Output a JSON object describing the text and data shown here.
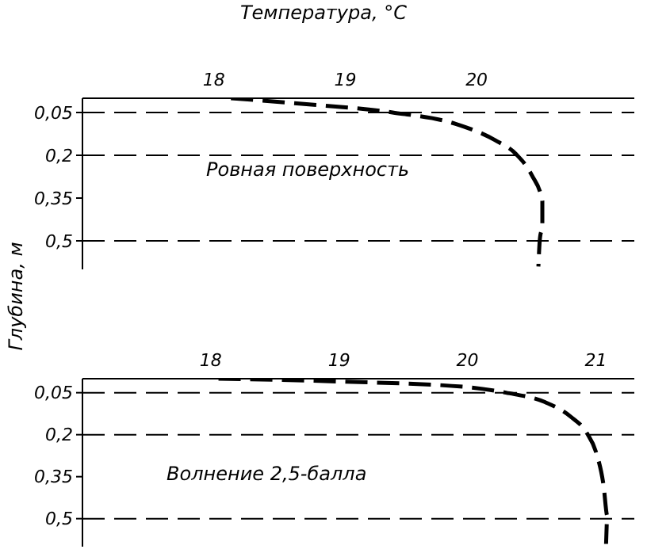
{
  "chart_data": [
    {
      "type": "line",
      "xlabel": "Температура, °C",
      "ylabel": "Глубина, м",
      "xlim": [
        17,
        21.2
      ],
      "xticks": [
        18,
        19,
        20
      ],
      "ylim": [
        0.6,
        0
      ],
      "yticks": [
        {
          "value": 0.05,
          "label": "0,05"
        },
        {
          "value": 0.2,
          "label": "0,2"
        },
        {
          "value": 0.35,
          "label": "0,35"
        },
        {
          "value": 0.5,
          "label": "0,5"
        }
      ],
      "grid": false,
      "line_style": "dashed",
      "marker": "none",
      "ref_lines": [
        {
          "axis": "y",
          "value": 0.05,
          "line_style": "dashed"
        },
        {
          "axis": "y",
          "value": 0.2,
          "line_style": "dashed"
        },
        {
          "axis": "y",
          "value": 0.5,
          "line_style": "dashed"
        }
      ],
      "annotations": [
        "Ровная поверхность"
      ],
      "series": [
        {
          "color": "#000000",
          "x": [
            18.13,
            18.6,
            19.36,
            19.84,
            20.14,
            20.3,
            20.42,
            20.5,
            20.5,
            20.48,
            20.47
          ],
          "values": [
            0,
            0.017,
            0.05,
            0.09,
            0.147,
            0.196,
            0.27,
            0.36,
            0.44,
            0.5,
            0.59
          ]
        }
      ]
    },
    {
      "type": "line",
      "xlim": [
        17,
        21.3
      ],
      "xticks": [
        18,
        19,
        20,
        21
      ],
      "ylim": [
        0.6,
        0
      ],
      "yticks": [
        {
          "value": 0.05,
          "label": "0,05"
        },
        {
          "value": 0.2,
          "label": "0,2"
        },
        {
          "value": 0.35,
          "label": "0,35"
        },
        {
          "value": 0.5,
          "label": "0,5"
        }
      ],
      "grid": false,
      "line_style": "dashed",
      "marker": "none",
      "ref_lines": [
        {
          "axis": "y",
          "value": 0.05,
          "line_style": "dashed"
        },
        {
          "axis": "y",
          "value": 0.2,
          "line_style": "dashed"
        },
        {
          "axis": "y",
          "value": 0.5,
          "line_style": "dashed"
        }
      ],
      "annotations": [
        "Волнение 2,5-балла"
      ],
      "series": [
        {
          "color": "#000000",
          "x": [
            18.06,
            19.0,
            20.0,
            20.3,
            20.6,
            20.8,
            20.93,
            21.0,
            21.06,
            21.09,
            21.08
          ],
          "values": [
            0,
            0.01,
            0.03,
            0.05,
            0.083,
            0.134,
            0.194,
            0.26,
            0.38,
            0.49,
            0.59
          ]
        }
      ]
    }
  ]
}
